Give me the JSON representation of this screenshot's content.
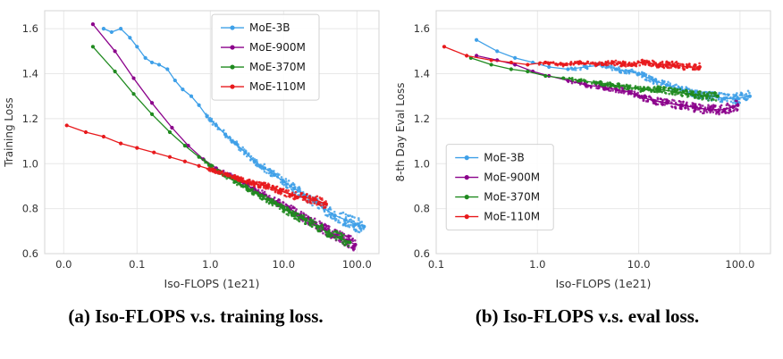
{
  "figure": {
    "captions": {
      "a": "(a) Iso-FLOPS v.s. training loss.",
      "b": "(b) Iso-FLOPS v.s. eval loss."
    }
  },
  "style": {
    "grid_color": "#e8e8e8",
    "frame_color": "#d5d5d5",
    "tick_color": "#333333",
    "legend_border": "#cfcfcf"
  },
  "chart_data": [
    {
      "type": "line",
      "title": "",
      "xlabel": "Iso-FLOPS (1e21)",
      "ylabel": "Training Loss",
      "xscale": "log",
      "xlim": [
        0.0055,
        200
      ],
      "ylim": [
        0.6,
        1.68
      ],
      "xticks": [
        {
          "v": 0.01,
          "label": "0.0"
        },
        {
          "v": 0.1,
          "label": "0.1"
        },
        {
          "v": 1.0,
          "label": "1.0"
        },
        {
          "v": 10.0,
          "label": "10.0"
        },
        {
          "v": 100.0,
          "label": "100.0"
        }
      ],
      "yticks": [
        0.6,
        0.8,
        1.0,
        1.2,
        1.4,
        1.6
      ],
      "grid": true,
      "legend": {
        "fx": 0.5,
        "fy": 0.015
      },
      "series": [
        {
          "name": "MoE-3B",
          "color": "#3fa0e8",
          "noise_from": 0.8,
          "noise_amp": 0.032,
          "noise_n": 300,
          "points": [
            [
              0.035,
              1.6
            ],
            [
              0.045,
              1.585
            ],
            [
              0.06,
              1.6
            ],
            [
              0.08,
              1.56
            ],
            [
              0.1,
              1.52
            ],
            [
              0.13,
              1.47
            ],
            [
              0.16,
              1.45
            ],
            [
              0.2,
              1.44
            ],
            [
              0.26,
              1.42
            ],
            [
              0.33,
              1.37
            ],
            [
              0.42,
              1.33
            ],
            [
              0.55,
              1.3
            ],
            [
              0.7,
              1.26
            ],
            [
              0.9,
              1.21
            ],
            [
              1.2,
              1.17
            ],
            [
              1.6,
              1.13
            ],
            [
              2.2,
              1.09
            ],
            [
              3.0,
              1.05
            ],
            [
              4.0,
              1.01
            ],
            [
              5.5,
              0.98
            ],
            [
              7.5,
              0.95
            ],
            [
              10,
              0.92
            ],
            [
              14,
              0.89
            ],
            [
              19,
              0.86
            ],
            [
              26,
              0.83
            ],
            [
              36,
              0.8
            ],
            [
              50,
              0.77
            ],
            [
              70,
              0.75
            ],
            [
              95,
              0.73
            ],
            [
              125,
              0.72
            ]
          ]
        },
        {
          "name": "MoE-900M",
          "color": "#8B008B",
          "noise_from": 1.5,
          "noise_amp": 0.03,
          "noise_n": 300,
          "points": [
            [
              0.025,
              1.62
            ],
            [
              0.05,
              1.5
            ],
            [
              0.09,
              1.38
            ],
            [
              0.16,
              1.27
            ],
            [
              0.3,
              1.16
            ],
            [
              0.5,
              1.08
            ],
            [
              0.8,
              1.02
            ],
            [
              1.2,
              0.98
            ],
            [
              1.8,
              0.95
            ],
            [
              2.6,
              0.92
            ],
            [
              3.8,
              0.89
            ],
            [
              5.5,
              0.86
            ],
            [
              8,
              0.83
            ],
            [
              12,
              0.8
            ],
            [
              17,
              0.77
            ],
            [
              25,
              0.74
            ],
            [
              36,
              0.71
            ],
            [
              52,
              0.68
            ],
            [
              72,
              0.66
            ],
            [
              95,
              0.64
            ]
          ]
        },
        {
          "name": "MoE-370M",
          "color": "#1f8a1f",
          "noise_from": 0.8,
          "noise_amp": 0.025,
          "noise_n": 300,
          "points": [
            [
              0.025,
              1.52
            ],
            [
              0.05,
              1.41
            ],
            [
              0.09,
              1.31
            ],
            [
              0.16,
              1.22
            ],
            [
              0.28,
              1.14
            ],
            [
              0.45,
              1.08
            ],
            [
              0.7,
              1.03
            ],
            [
              1.0,
              0.99
            ],
            [
              1.5,
              0.95
            ],
            [
              2.2,
              0.92
            ],
            [
              3.2,
              0.89
            ],
            [
              4.6,
              0.86
            ],
            [
              6.8,
              0.83
            ],
            [
              10,
              0.8
            ],
            [
              14,
              0.77
            ],
            [
              20,
              0.75
            ],
            [
              29,
              0.72
            ],
            [
              42,
              0.69
            ],
            [
              60,
              0.67
            ],
            [
              80,
              0.65
            ]
          ]
        },
        {
          "name": "MoE-110M",
          "color": "#e8191c",
          "noise_from": 0.8,
          "noise_amp": 0.022,
          "noise_n": 280,
          "points": [
            [
              0.011,
              1.17
            ],
            [
              0.02,
              1.14
            ],
            [
              0.035,
              1.12
            ],
            [
              0.06,
              1.09
            ],
            [
              0.1,
              1.07
            ],
            [
              0.17,
              1.05
            ],
            [
              0.28,
              1.03
            ],
            [
              0.45,
              1.01
            ],
            [
              0.7,
              0.99
            ],
            [
              1.1,
              0.97
            ],
            [
              1.7,
              0.95
            ],
            [
              2.6,
              0.93
            ],
            [
              4,
              0.91
            ],
            [
              6,
              0.9
            ],
            [
              9,
              0.88
            ],
            [
              13,
              0.86
            ],
            [
              19,
              0.85
            ],
            [
              27,
              0.84
            ],
            [
              38,
              0.82
            ]
          ]
        }
      ]
    },
    {
      "type": "line",
      "title": "",
      "xlabel": "Iso-FLOPS (1e21)",
      "ylabel": "8-th Day Eval Loss",
      "xscale": "log",
      "xlim": [
        0.1,
        200
      ],
      "ylim": [
        0.6,
        1.68
      ],
      "xticks": [
        {
          "v": 0.1,
          "label": "0.1"
        },
        {
          "v": 1.0,
          "label": "1.0"
        },
        {
          "v": 10.0,
          "label": "10.0"
        },
        {
          "v": 100.0,
          "label": "100.0"
        }
      ],
      "yticks": [
        0.6,
        0.8,
        1.0,
        1.2,
        1.4,
        1.6
      ],
      "grid": true,
      "legend": {
        "fx": 0.03,
        "fy": 0.55
      },
      "series": [
        {
          "name": "MoE-3B",
          "color": "#3fa0e8",
          "noise_from": 2.0,
          "noise_amp": 0.025,
          "noise_n": 300,
          "points": [
            [
              0.25,
              1.55
            ],
            [
              0.4,
              1.5
            ],
            [
              0.6,
              1.47
            ],
            [
              0.9,
              1.45
            ],
            [
              1.3,
              1.43
            ],
            [
              2,
              1.42
            ],
            [
              3,
              1.43
            ],
            [
              4.5,
              1.44
            ],
            [
              6,
              1.42
            ],
            [
              8,
              1.41
            ],
            [
              10,
              1.4
            ],
            [
              14,
              1.37
            ],
            [
              19,
              1.35
            ],
            [
              26,
              1.33
            ],
            [
              36,
              1.31
            ],
            [
              50,
              1.3
            ],
            [
              70,
              1.29
            ],
            [
              95,
              1.29
            ],
            [
              125,
              1.3
            ]
          ]
        },
        {
          "name": "MoE-900M",
          "color": "#8B008B",
          "noise_from": 2.0,
          "noise_amp": 0.025,
          "noise_n": 300,
          "points": [
            [
              0.25,
              1.48
            ],
            [
              0.4,
              1.46
            ],
            [
              0.6,
              1.44
            ],
            [
              0.9,
              1.41
            ],
            [
              1.3,
              1.39
            ],
            [
              2,
              1.37
            ],
            [
              3,
              1.35
            ],
            [
              4.5,
              1.34
            ],
            [
              6,
              1.33
            ],
            [
              8,
              1.32
            ],
            [
              10,
              1.3
            ],
            [
              14,
              1.28
            ],
            [
              19,
              1.27
            ],
            [
              26,
              1.26
            ],
            [
              36,
              1.25
            ],
            [
              50,
              1.24
            ],
            [
              70,
              1.24
            ],
            [
              95,
              1.26
            ]
          ]
        },
        {
          "name": "MoE-370M",
          "color": "#1f8a1f",
          "noise_from": 2.0,
          "noise_amp": 0.02,
          "noise_n": 260,
          "points": [
            [
              0.22,
              1.47
            ],
            [
              0.35,
              1.44
            ],
            [
              0.55,
              1.42
            ],
            [
              0.8,
              1.41
            ],
            [
              1.2,
              1.39
            ],
            [
              1.8,
              1.38
            ],
            [
              2.6,
              1.37
            ],
            [
              3.8,
              1.36
            ],
            [
              5.5,
              1.35
            ],
            [
              8,
              1.34
            ],
            [
              11,
              1.33
            ],
            [
              16,
              1.33
            ],
            [
              23,
              1.32
            ],
            [
              33,
              1.31
            ],
            [
              47,
              1.3
            ],
            [
              60,
              1.3
            ]
          ]
        },
        {
          "name": "MoE-110M",
          "color": "#e8191c",
          "noise_from": 1.0,
          "noise_amp": 0.018,
          "noise_n": 300,
          "points": [
            [
              0.12,
              1.52
            ],
            [
              0.2,
              1.48
            ],
            [
              0.35,
              1.46
            ],
            [
              0.55,
              1.45
            ],
            [
              0.8,
              1.44
            ],
            [
              1.2,
              1.45
            ],
            [
              1.8,
              1.44
            ],
            [
              2.6,
              1.45
            ],
            [
              3.8,
              1.44
            ],
            [
              5.5,
              1.45
            ],
            [
              8,
              1.44
            ],
            [
              11,
              1.45
            ],
            [
              16,
              1.44
            ],
            [
              22,
              1.44
            ],
            [
              30,
              1.43
            ],
            [
              40,
              1.43
            ]
          ]
        }
      ]
    }
  ]
}
